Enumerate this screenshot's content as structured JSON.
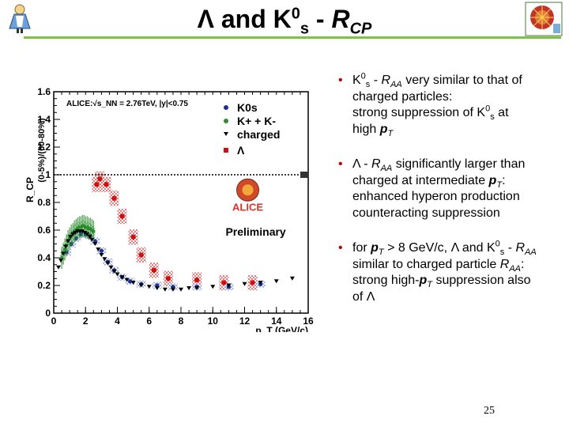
{
  "slide": {
    "title_parts": [
      "Λ and K",
      "0",
      "s",
      " - ",
      "R",
      "CP"
    ],
    "page_number": "25",
    "accent_color": "#7cc246",
    "bullet_marker": "•",
    "bullets": [
      {
        "lines": [
          [
            "K",
            {
              "sup": "0"
            },
            {
              "sub": "s"
            },
            " - ",
            {
              "it": "R"
            },
            {
              "sub_it": "AA"
            },
            " very similar to that of"
          ],
          [
            "charged particles:"
          ],
          [
            "strong suppression of K",
            {
              "sup": "0"
            },
            {
              "sub": "s"
            },
            " at"
          ],
          [
            "high ",
            {
              "b_it": "p"
            },
            {
              "sub_it": "T"
            }
          ]
        ]
      },
      {
        "lines": [
          [
            "Λ - ",
            {
              "it": "R"
            },
            {
              "sub_it": "AA"
            },
            " significantly larger than"
          ],
          [
            "charged at intermediate ",
            {
              "b_it": "p"
            },
            {
              "sub_it": "T"
            },
            ":"
          ],
          [
            "enhanced hyperon production"
          ],
          [
            "counteracting suppression"
          ]
        ]
      },
      {
        "lines": [
          [
            "for ",
            {
              "b_it": "p"
            },
            {
              "sub_it": "T"
            },
            " > 8 GeV/c, Λ and K",
            {
              "sup": "0"
            },
            {
              "sub": "s"
            },
            " - ",
            {
              "it": "R"
            },
            {
              "sub_it": "AA"
            }
          ],
          [
            "similar to charged particle ",
            {
              "it": "R"
            },
            {
              "sub_it": "AA"
            },
            ":"
          ],
          [
            "strong high-",
            {
              "b_it": "p"
            },
            {
              "sub_it": "T"
            },
            " suppression also"
          ],
          [
            "of Λ"
          ]
        ]
      }
    ]
  },
  "chart_data": {
    "type": "scatter",
    "annotation": "ALICE:√s_NN = 2.76TeV, |y|<0.75",
    "ylabel_main": "R_CP",
    "ylabel_ratio": "(0-5%)/(60-80%)",
    "xlabel": "p_T (GeV/c)",
    "watermark": "Preliminary",
    "logo_text": "ALICE",
    "xlim": [
      0,
      16
    ],
    "ylim": [
      0,
      1.6
    ],
    "xticks": [
      0,
      2,
      4,
      6,
      8,
      10,
      12,
      14,
      16
    ],
    "yticks": [
      0.2,
      0.4,
      0.6,
      0.8,
      1,
      1.2,
      1.4,
      1.6
    ],
    "reference_line": 1,
    "legend": [
      {
        "label": "K0s",
        "color": "#1a2f9a",
        "marker": "circle"
      },
      {
        "label": "K+ + K-",
        "color": "#2e8b2e",
        "marker": "circle"
      },
      {
        "label": "charged",
        "color": "#000000",
        "marker": "triangle-down"
      },
      {
        "label": "Λ",
        "color": "#d01010",
        "marker": "square"
      }
    ],
    "series": [
      {
        "name": "Λ",
        "color": "#d01010",
        "band": "#e07070",
        "points": [
          [
            2.7,
            0.93
          ],
          [
            2.9,
            0.97
          ],
          [
            3.3,
            0.93
          ],
          [
            3.8,
            0.83
          ],
          [
            4.3,
            0.7
          ],
          [
            5.0,
            0.55
          ],
          [
            5.5,
            0.42
          ],
          [
            6.3,
            0.31
          ],
          [
            7.2,
            0.25
          ],
          [
            9.0,
            0.24
          ],
          [
            10.7,
            0.22
          ],
          [
            12.5,
            0.22
          ]
        ]
      },
      {
        "name": "K0s",
        "color": "#1a2f9a",
        "band": "#9aa8dc",
        "points": [
          [
            0.8,
            0.44
          ],
          [
            1.1,
            0.5
          ],
          [
            1.4,
            0.54
          ],
          [
            1.7,
            0.57
          ],
          [
            2.0,
            0.57
          ],
          [
            2.3,
            0.56
          ],
          [
            2.6,
            0.52
          ],
          [
            3.0,
            0.45
          ],
          [
            3.4,
            0.37
          ],
          [
            3.8,
            0.31
          ],
          [
            4.3,
            0.26
          ],
          [
            4.8,
            0.23
          ],
          [
            5.5,
            0.21
          ],
          [
            6.5,
            0.2
          ],
          [
            7.5,
            0.19
          ],
          [
            9.0,
            0.19
          ],
          [
            11.0,
            0.19
          ],
          [
            13.0,
            0.21
          ]
        ]
      },
      {
        "name": "K+ + K-",
        "color": "#2e8b2e",
        "band": "#88cc88",
        "points": [
          [
            0.5,
            0.4
          ],
          [
            0.6,
            0.43
          ],
          [
            0.7,
            0.46
          ],
          [
            0.8,
            0.49
          ],
          [
            0.9,
            0.52
          ],
          [
            1.0,
            0.54
          ],
          [
            1.1,
            0.56
          ],
          [
            1.2,
            0.57
          ],
          [
            1.3,
            0.59
          ],
          [
            1.4,
            0.6
          ],
          [
            1.5,
            0.61
          ],
          [
            1.6,
            0.62
          ],
          [
            1.7,
            0.62
          ],
          [
            1.8,
            0.63
          ],
          [
            1.9,
            0.63
          ],
          [
            2.0,
            0.62
          ],
          [
            2.1,
            0.62
          ],
          [
            2.2,
            0.61
          ],
          [
            2.3,
            0.61
          ],
          [
            2.4,
            0.6
          ],
          [
            2.5,
            0.59
          ]
        ]
      },
      {
        "name": "charged",
        "color": "#000000",
        "points": [
          [
            0.3,
            0.33
          ],
          [
            0.45,
            0.38
          ],
          [
            0.6,
            0.43
          ],
          [
            0.75,
            0.48
          ],
          [
            0.9,
            0.52
          ],
          [
            1.05,
            0.55
          ],
          [
            1.2,
            0.57
          ],
          [
            1.35,
            0.58
          ],
          [
            1.5,
            0.59
          ],
          [
            1.65,
            0.59
          ],
          [
            1.8,
            0.59
          ],
          [
            1.95,
            0.58
          ],
          [
            2.1,
            0.57
          ],
          [
            2.25,
            0.55
          ],
          [
            2.4,
            0.53
          ],
          [
            2.6,
            0.5
          ],
          [
            2.8,
            0.46
          ],
          [
            3.0,
            0.42
          ],
          [
            3.2,
            0.39
          ],
          [
            3.4,
            0.36
          ],
          [
            3.6,
            0.33
          ],
          [
            3.8,
            0.3
          ],
          [
            4.0,
            0.28
          ],
          [
            4.3,
            0.26
          ],
          [
            4.6,
            0.24
          ],
          [
            5.0,
            0.22
          ],
          [
            5.5,
            0.2
          ],
          [
            6.0,
            0.19
          ],
          [
            6.5,
            0.18
          ],
          [
            7.0,
            0.17
          ],
          [
            7.5,
            0.17
          ],
          [
            8.0,
            0.17
          ],
          [
            8.5,
            0.18
          ],
          [
            9.0,
            0.18
          ],
          [
            10.0,
            0.19
          ],
          [
            11.0,
            0.2
          ],
          [
            12.0,
            0.21
          ],
          [
            13.0,
            0.22
          ],
          [
            14.0,
            0.23
          ],
          [
            15.0,
            0.25
          ]
        ]
      }
    ]
  }
}
